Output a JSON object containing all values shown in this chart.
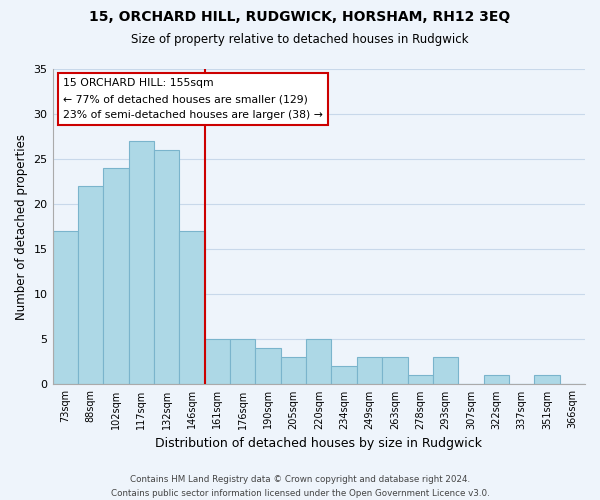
{
  "title": "15, ORCHARD HILL, RUDGWICK, HORSHAM, RH12 3EQ",
  "subtitle": "Size of property relative to detached houses in Rudgwick",
  "xlabel": "Distribution of detached houses by size in Rudgwick",
  "ylabel": "Number of detached properties",
  "bar_labels": [
    "73sqm",
    "88sqm",
    "102sqm",
    "117sqm",
    "132sqm",
    "146sqm",
    "161sqm",
    "176sqm",
    "190sqm",
    "205sqm",
    "220sqm",
    "234sqm",
    "249sqm",
    "263sqm",
    "278sqm",
    "293sqm",
    "307sqm",
    "322sqm",
    "337sqm",
    "351sqm",
    "366sqm"
  ],
  "bar_values": [
    17,
    22,
    24,
    27,
    26,
    17,
    5,
    5,
    4,
    3,
    5,
    2,
    3,
    3,
    1,
    3,
    0,
    1,
    0,
    1,
    0
  ],
  "bar_color": "#add8e6",
  "bar_edge_color": "#7ab4cc",
  "vline_x": 5.5,
  "vline_color": "#cc0000",
  "annotation_title": "15 ORCHARD HILL: 155sqm",
  "annotation_line1": "← 77% of detached houses are smaller (129)",
  "annotation_line2": "23% of semi-detached houses are larger (38) →",
  "annotation_box_edge": "#cc0000",
  "ylim": [
    0,
    35
  ],
  "yticks": [
    0,
    5,
    10,
    15,
    20,
    25,
    30,
    35
  ],
  "footer1": "Contains HM Land Registry data © Crown copyright and database right 2024.",
  "footer2": "Contains public sector information licensed under the Open Government Licence v3.0.",
  "bg_color": "#eef4fb",
  "grid_color": "#c8d8ea"
}
